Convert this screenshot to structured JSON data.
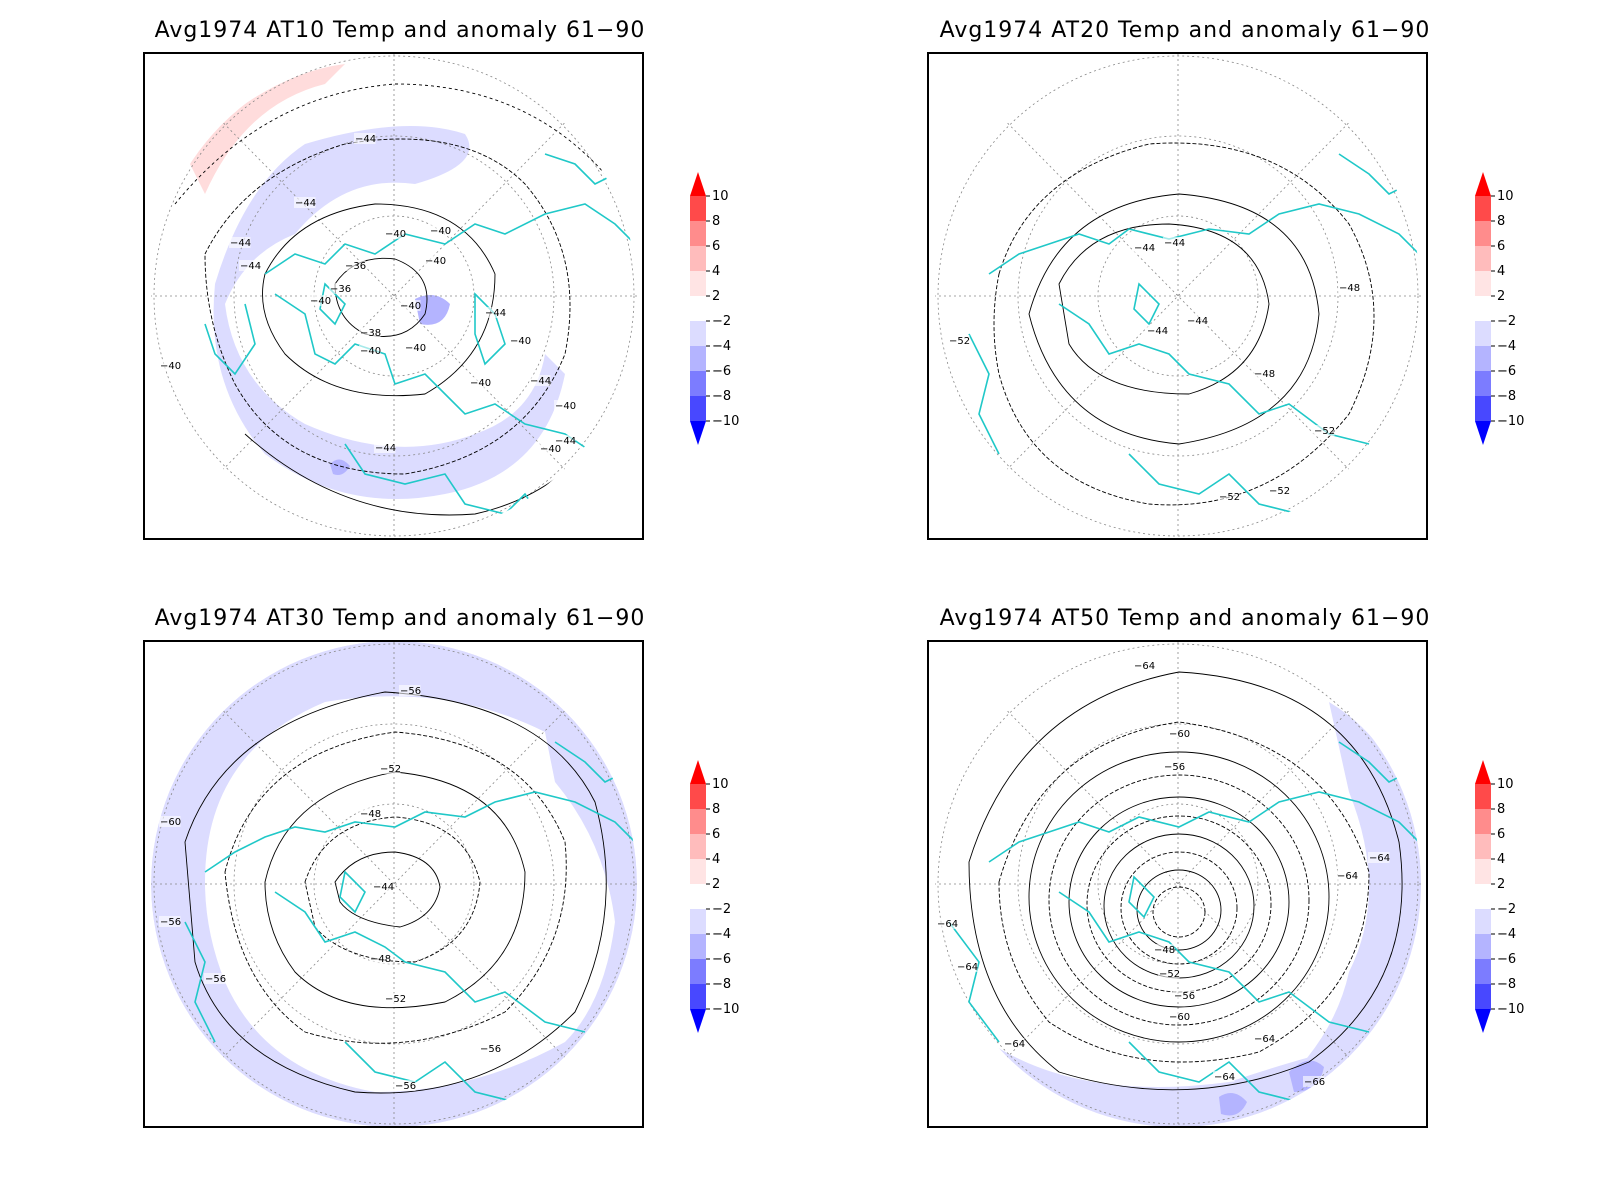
{
  "panels": [
    {
      "title": "Avg1974 AT10 Temp and anomaly 61−90",
      "contour_labels": [
        "−44",
        "−44",
        "−44",
        "−40",
        "−40",
        "−36",
        "−36",
        "−40",
        "−40",
        "−40",
        "−38",
        "−40",
        "−40",
        "−44",
        "−40",
        "−40",
        "−44",
        "−40",
        "−44",
        "−44",
        "−40",
        "−44",
        "−40"
      ]
    },
    {
      "title": "Avg1974 AT20 Temp and anomaly 61−90",
      "contour_labels": [
        "−44",
        "−44",
        "−44",
        "−44",
        "−48",
        "−52",
        "−48",
        "−52",
        "−52",
        "−52"
      ]
    },
    {
      "title": "Avg1974 AT30 Temp and anomaly 61−90",
      "contour_labels": [
        "−56",
        "−52",
        "−48",
        "−44",
        "−60",
        "−56",
        "−56",
        "−48",
        "−52",
        "−56",
        "−56"
      ]
    },
    {
      "title": "Avg1974 AT50 Temp and anomaly 61−90",
      "contour_labels": [
        "−64",
        "−60",
        "−56",
        "−48",
        "−52",
        "−56",
        "−60",
        "−64",
        "−64",
        "−64",
        "−64",
        "−64",
        "−64",
        "−64",
        "−66"
      ]
    }
  ],
  "colorbar": {
    "labels": [
      "10",
      "8",
      "6",
      "4",
      "2",
      "−2",
      "−4",
      "−6",
      "−8",
      "−10"
    ],
    "colors": [
      "#ff0000",
      "#ff4a4a",
      "#ff8c8c",
      "#ffbcbc",
      "#ffe4e4",
      "#ffffff",
      "#dcdcff",
      "#b4b4ff",
      "#7c7cff",
      "#4848ff",
      "#0000ff"
    ]
  },
  "colors": {
    "coastline": "#20c8c8",
    "contour": "#000000",
    "grid": "#888888",
    "neg_anom_light": "#dcdcff",
    "neg_anom_mid": "#b4b4ff",
    "pos_anom_light": "#ffdcdc"
  }
}
